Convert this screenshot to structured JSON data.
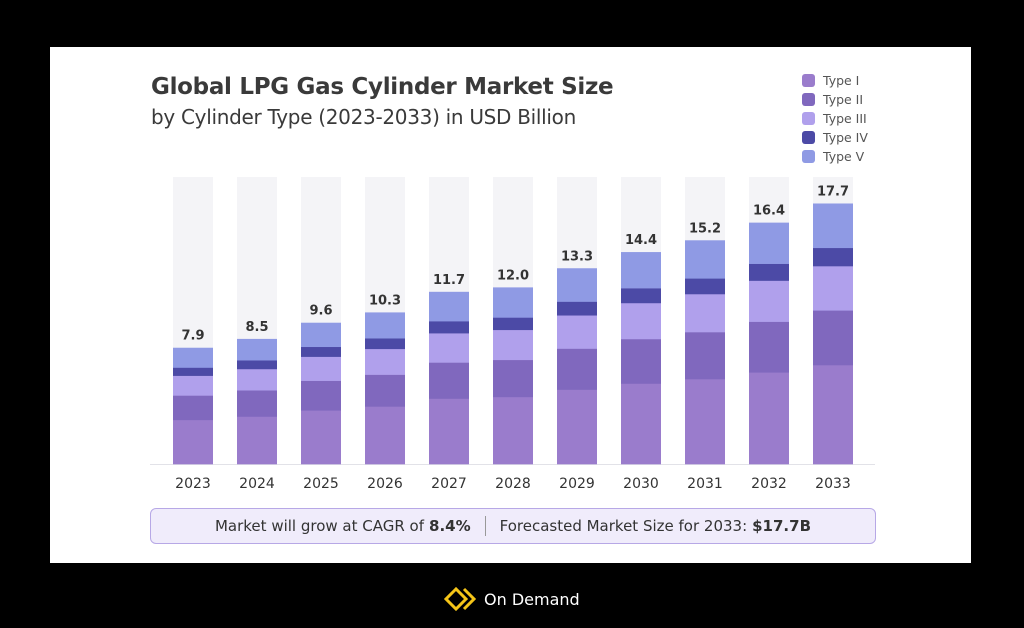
{
  "chart_data": {
    "type": "bar",
    "stacked": true,
    "title": "Global LPG Gas Cylinder Market Size",
    "subtitle": "by Cylinder Type (2023-2033) in USD Billion",
    "categories": [
      "2023",
      "2024",
      "2025",
      "2026",
      "2027",
      "2028",
      "2029",
      "2030",
      "2031",
      "2032",
      "2033"
    ],
    "totals": [
      7.9,
      8.5,
      9.6,
      10.3,
      11.7,
      12.0,
      13.3,
      14.4,
      15.2,
      16.4,
      17.7
    ],
    "total_labels": [
      "7.9",
      "8.5",
      "9.6",
      "10.3",
      "11.7",
      "12.0",
      "13.3",
      "14.4",
      "15.2",
      "16.4",
      "17.7"
    ],
    "series": [
      {
        "name": "Type I",
        "color": "#9a7ccc",
        "share": 0.38
      },
      {
        "name": "Type II",
        "color": "#8068be",
        "share": 0.21
      },
      {
        "name": "Type III",
        "color": "#b0a0ec",
        "share": 0.17
      },
      {
        "name": "Type IV",
        "color": "#4c4aa6",
        "share": 0.07
      },
      {
        "name": "Type V",
        "color": "#8f9ae4",
        "share": 0.17
      }
    ],
    "ylim": [
      0,
      19.5
    ],
    "grid": false,
    "legend_position": "top-right"
  },
  "footer": {
    "cagr_text": "Market will grow at CAGR of",
    "cagr_value": "8.4%",
    "forecast_text": "Forecasted Market Size for 2033:",
    "forecast_value": "$17.7B"
  },
  "brand": {
    "name": "On Demand",
    "icon": "double-chevron-diamond-icon",
    "color": "#f5c518"
  }
}
